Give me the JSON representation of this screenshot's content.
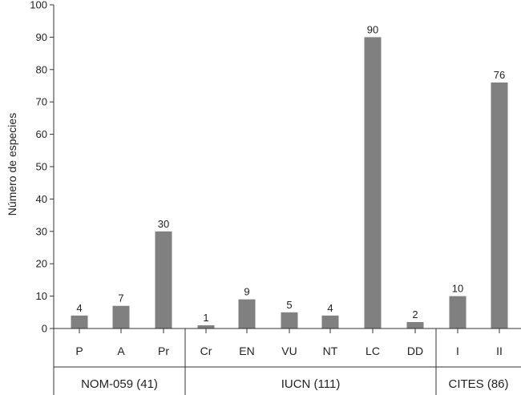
{
  "chart_data": {
    "type": "bar",
    "title": "",
    "ylabel": "Número de especies",
    "xlabel": "",
    "ylim": [
      0,
      100
    ],
    "yticks": [
      0,
      10,
      20,
      30,
      40,
      50,
      60,
      70,
      80,
      90,
      100
    ],
    "grid": false,
    "bar_color": "#808080",
    "categories": [
      "P",
      "A",
      "Pr",
      "Cr",
      "EN",
      "VU",
      "NT",
      "LC",
      "DD",
      "I",
      "II"
    ],
    "values": [
      4,
      7,
      30,
      1,
      9,
      5,
      4,
      90,
      2,
      10,
      76
    ],
    "groups": [
      {
        "label": "NOM-059 (41)",
        "categories": [
          "P",
          "A",
          "Pr"
        ]
      },
      {
        "label": "IUCN (111)",
        "categories": [
          "Cr",
          "EN",
          "VU",
          "NT",
          "LC",
          "DD"
        ]
      },
      {
        "label": "CITES (86)",
        "categories": [
          "I",
          "II"
        ]
      }
    ]
  }
}
